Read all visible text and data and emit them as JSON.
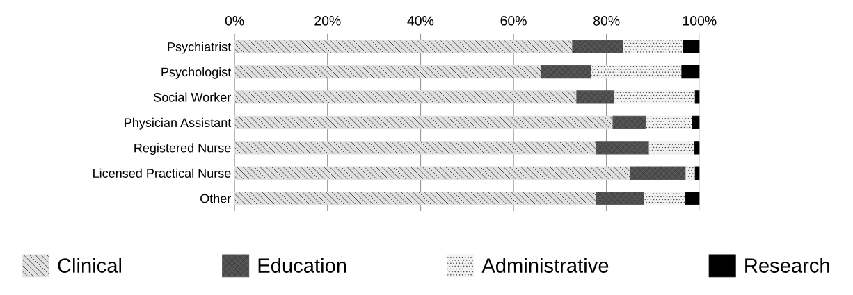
{
  "chart_data": {
    "type": "bar",
    "orientation": "horizontal",
    "stacked": true,
    "categories": [
      "Psychiatrist",
      "Psychologist",
      "Social Worker",
      "Physician Assistant",
      "Registered Nurse",
      "Licensed Practical Nurse",
      "Other"
    ],
    "series": [
      {
        "name": "Clinical",
        "color": "#e0e0e0",
        "values": [
          72.7,
          65.9,
          73.6,
          81.4,
          77.8,
          85.1,
          77.8
        ]
      },
      {
        "name": "Education",
        "color": "#555555",
        "values": [
          11.0,
          10.8,
          8.1,
          7.1,
          11.4,
          12.0,
          10.3
        ]
      },
      {
        "name": "Administrative",
        "color": "#f2f2f2",
        "values": [
          12.8,
          19.5,
          17.4,
          9.9,
          9.8,
          2.0,
          8.9
        ]
      },
      {
        "name": "Research",
        "color": "#000000",
        "values": [
          3.5,
          3.8,
          0.9,
          1.6,
          1.0,
          0.9,
          3.0
        ]
      }
    ],
    "xlim": [
      0,
      100
    ],
    "xticks": [
      {
        "value": 0,
        "label": "0%"
      },
      {
        "value": 20,
        "label": "20%"
      },
      {
        "value": 40,
        "label": "40%"
      },
      {
        "value": 60,
        "label": "60%"
      },
      {
        "value": 80,
        "label": "80%"
      },
      {
        "value": 100,
        "label": "100%"
      }
    ],
    "grid": "x",
    "legend": "bottom"
  }
}
